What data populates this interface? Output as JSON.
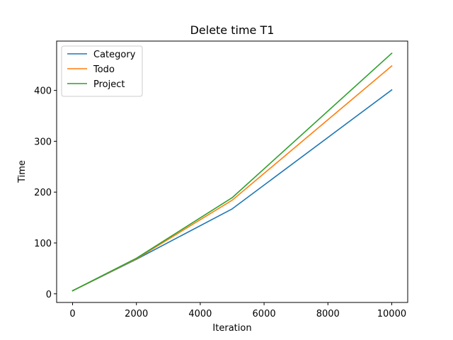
{
  "chart_data": {
    "type": "line",
    "title": "Delete time T1",
    "xlabel": "Iteration",
    "ylabel": "Time",
    "x": [
      0,
      2000,
      5000,
      10000
    ],
    "xlim": [
      -500,
      10500
    ],
    "ylim": [
      -17,
      497
    ],
    "xticks": [
      0,
      2000,
      4000,
      6000,
      8000,
      10000
    ],
    "yticks": [
      0,
      100,
      200,
      300,
      400
    ],
    "grid": false,
    "legend_position": "top-left",
    "series": [
      {
        "name": "Category",
        "color": "#1f77b4",
        "values": [
          6,
          68,
          167,
          401
        ]
      },
      {
        "name": "Todo",
        "color": "#ff7f0e",
        "values": [
          6,
          69,
          184,
          448
        ]
      },
      {
        "name": "Project",
        "color": "#2ca02c",
        "values": [
          6,
          70,
          189,
          473
        ]
      }
    ]
  }
}
